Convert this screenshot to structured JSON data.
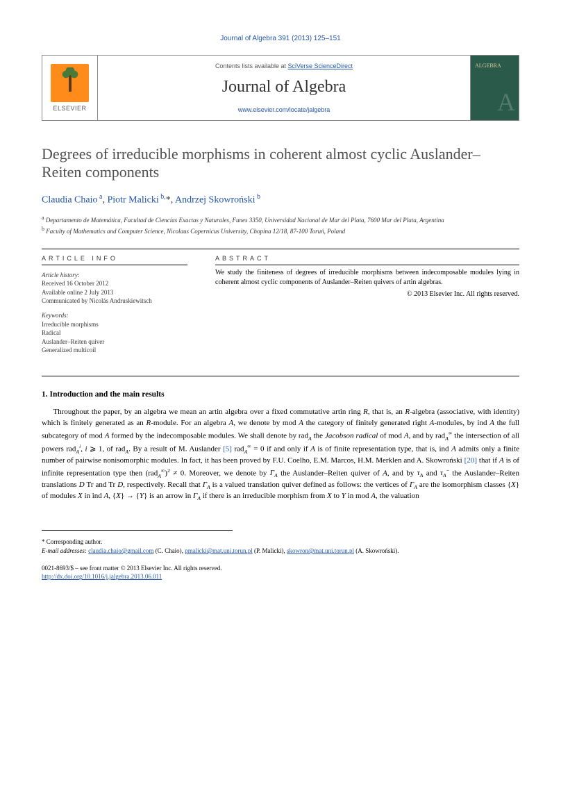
{
  "journal_ref_link": "Journal of Algebra 391 (2013) 125–151",
  "header": {
    "elsevier": "ELSEVIER",
    "lists_text": "Contents lists available at ",
    "lists_link": "SciVerse ScienceDirect",
    "journal_name": "Journal of Algebra",
    "journal_url": "www.elsevier.com/locate/jalgebra",
    "cover_label": "ALGEBRA"
  },
  "title": "Degrees of irreducible morphisms in coherent almost cyclic Auslander–Reiten components",
  "authors_html": "Claudia Chaio <sup>a</sup>, Piotr Malicki <sup>b,</sup>*, Andrzej Skowroński <sup>b</sup>",
  "affiliations": {
    "a": "Departamento de Matemática, Facultad de Ciencias Exactas y Naturales, Funes 3350, Universidad Nacional de Mar del Plata, 7600 Mar del Plata, Argentina",
    "b": "Faculty of Mathematics and Computer Science, Nicolaus Copernicus University, Chopina 12/18, 87-100 Toruń, Poland"
  },
  "info": {
    "label": "ARTICLE INFO",
    "history_label": "Article history:",
    "received": "Received 16 October 2012",
    "online": "Available online 2 July 2013",
    "communicated": "Communicated by Nicolás Andruskiewitsch",
    "keywords_label": "Keywords:",
    "keywords": [
      "Irreducible morphisms",
      "Radical",
      "Auslander–Reiten quiver",
      "Generalized multicoil"
    ]
  },
  "abstract": {
    "label": "ABSTRACT",
    "text": "We study the finiteness of degrees of irreducible morphisms between indecomposable modules lying in coherent almost cyclic components of Auslander–Reiten quivers of artin algebras.",
    "copyright": "© 2013 Elsevier Inc. All rights reserved."
  },
  "body": {
    "heading": "1. Introduction and the main results",
    "ref1": "[5]",
    "ref2": "[20]"
  },
  "footnotes": {
    "corresponding": "* Corresponding author.",
    "email_label": "E-mail addresses:",
    "emails": [
      {
        "addr": "claudia.chaio@gmail.com",
        "name": "(C. Chaio)"
      },
      {
        "addr": "pmalicki@mat.uni.torun.pl",
        "name": "(P. Malicki)"
      },
      {
        "addr": "skowron@mat.uni.torun.pl",
        "name": "(A. Skowroński)"
      }
    ]
  },
  "doi": {
    "issn": "0021-8693/$ – see front matter © 2013 Elsevier Inc. All rights reserved.",
    "url": "http://dx.doi.org/10.1016/j.jalgebra.2013.06.011"
  }
}
